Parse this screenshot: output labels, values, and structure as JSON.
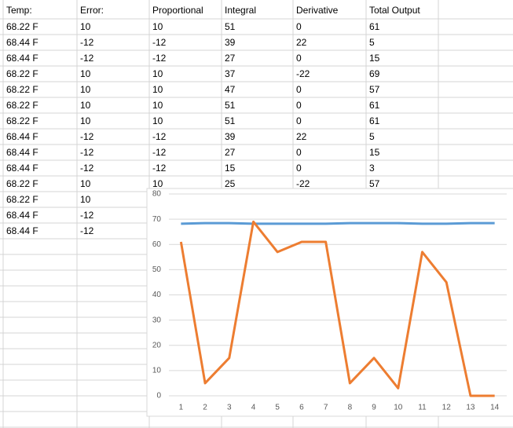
{
  "table": {
    "header": [
      "Temp:",
      "Error:",
      "Proportional",
      "Integral",
      "Derivative",
      "Total Output"
    ],
    "rows": [
      [
        "68.22 F",
        10,
        10,
        51,
        0,
        61
      ],
      [
        "68.44 F",
        -12,
        -12,
        39,
        22,
        5
      ],
      [
        "68.44 F",
        -12,
        -12,
        27,
        0,
        15
      ],
      [
        "68.22 F",
        10,
        10,
        37,
        -22,
        69
      ],
      [
        "68.22 F",
        10,
        10,
        47,
        0,
        57
      ],
      [
        "68.22 F",
        10,
        10,
        51,
        0,
        61
      ],
      [
        "68.22 F",
        10,
        10,
        51,
        0,
        61
      ],
      [
        "68.44 F",
        -12,
        -12,
        39,
        22,
        5
      ],
      [
        "68.44 F",
        -12,
        -12,
        27,
        0,
        15
      ],
      [
        "68.44 F",
        -12,
        -12,
        15,
        0,
        3
      ],
      [
        "68.22 F",
        10,
        10,
        25,
        -22,
        57
      ],
      [
        "68.22 F",
        10
      ],
      [
        "68.44 F",
        -12
      ],
      [
        "68.44 F",
        -12
      ]
    ]
  },
  "chart_data": {
    "type": "line",
    "categories": [
      "1",
      "2",
      "3",
      "4",
      "5",
      "6",
      "7",
      "8",
      "9",
      "10",
      "11",
      "12",
      "13",
      "14"
    ],
    "series": [
      {
        "color": "#5b9bd5",
        "values": [
          68.22,
          68.44,
          68.44,
          68.22,
          68.22,
          68.22,
          68.22,
          68.44,
          68.44,
          68.44,
          68.22,
          68.22,
          68.44,
          68.44
        ]
      },
      {
        "color": "#ed7d31",
        "values": [
          61,
          5,
          15,
          69,
          57,
          61,
          61,
          5,
          15,
          3,
          57,
          45,
          0,
          0
        ]
      }
    ],
    "ylim": [
      0,
      80
    ],
    "yticks": [
      0,
      10,
      20,
      30,
      40,
      50,
      60,
      70,
      80
    ],
    "grid": true
  }
}
